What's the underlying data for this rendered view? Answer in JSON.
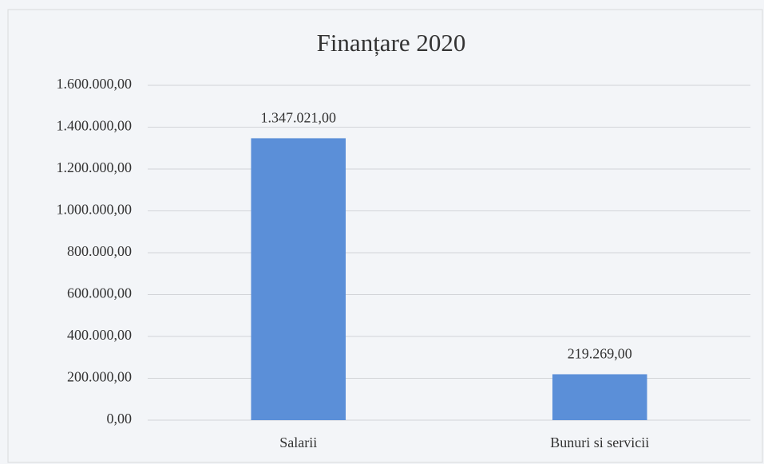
{
  "chart_data": {
    "type": "bar",
    "title": "Finanțare 2020",
    "categories": [
      "Salarii",
      "Bunuri si servicii"
    ],
    "values": [
      1347021,
      219269
    ],
    "value_labels": [
      "1.347.021,00",
      "219.269,00"
    ],
    "color": "#5b8fd8",
    "ylim": [
      0,
      1600000
    ],
    "yticks": [
      {
        "value": 0,
        "label": "0,00"
      },
      {
        "value": 200000,
        "label": "200.000,00"
      },
      {
        "value": 400000,
        "label": "400.000,00"
      },
      {
        "value": 600000,
        "label": "600.000,00"
      },
      {
        "value": 800000,
        "label": "800.000,00"
      },
      {
        "value": 1000000,
        "label": "1.000.000,00"
      },
      {
        "value": 1200000,
        "label": "1.200.000,00"
      },
      {
        "value": 1400000,
        "label": "1.400.000,00"
      },
      {
        "value": 1600000,
        "label": "1.600.000,00"
      }
    ],
    "grid": true
  }
}
